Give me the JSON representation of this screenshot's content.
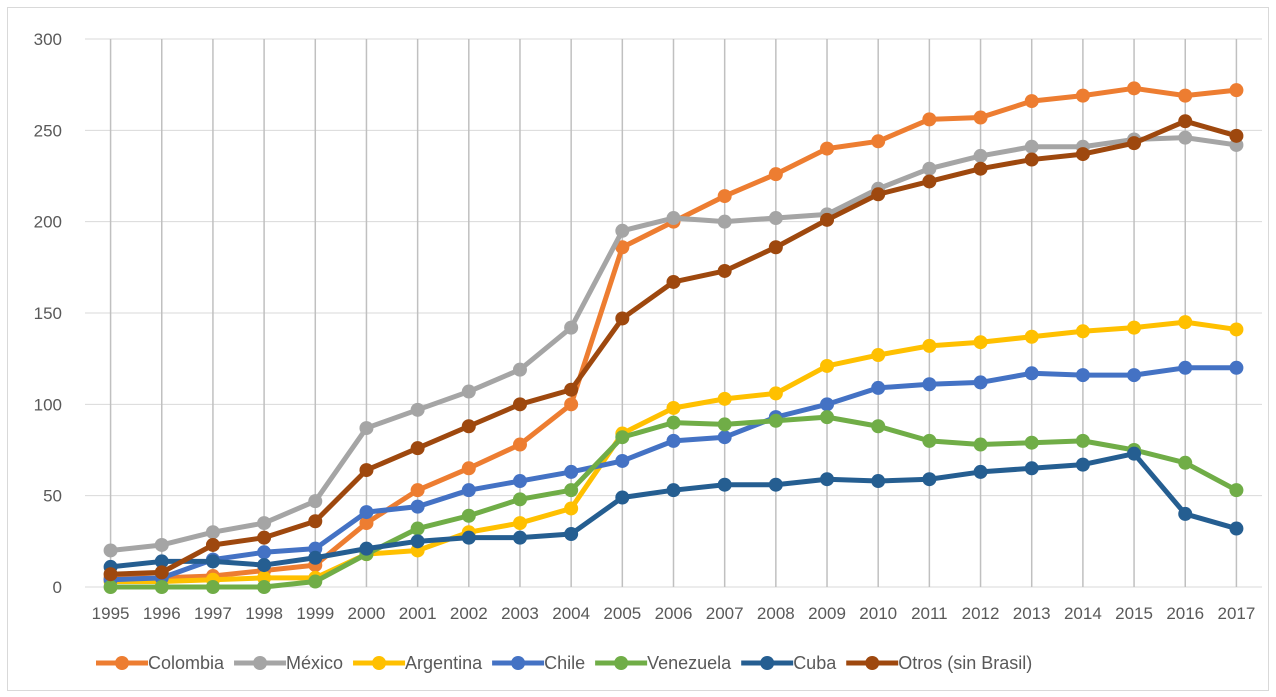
{
  "chart_data": {
    "type": "line",
    "title": "",
    "xlabel": "",
    "ylabel": "",
    "ylim": [
      0,
      300
    ],
    "yticks": [
      0,
      50,
      100,
      150,
      200,
      250,
      300
    ],
    "grid": {
      "horizontal": true,
      "vertical": true
    },
    "legend_position": "bottom",
    "categories": [
      "1995",
      "1996",
      "1997",
      "1998",
      "1999",
      "2000",
      "2001",
      "2002",
      "2003",
      "2004",
      "2005",
      "2006",
      "2007",
      "2008",
      "2009",
      "2010",
      "2011",
      "2012",
      "2013",
      "2014",
      "2015",
      "2016",
      "2017"
    ],
    "series": [
      {
        "name": "Colombia",
        "color": "#ED7D31",
        "values": [
          5,
          5,
          6,
          9,
          12,
          35,
          53,
          65,
          78,
          100,
          186,
          200,
          214,
          226,
          240,
          244,
          256,
          257,
          266,
          269,
          273,
          269,
          272
        ]
      },
      {
        "name": "México",
        "color": "#A5A5A5",
        "values": [
          20,
          23,
          30,
          35,
          47,
          87,
          97,
          107,
          119,
          142,
          195,
          202,
          200,
          202,
          204,
          218,
          229,
          236,
          241,
          241,
          245,
          246,
          242
        ]
      },
      {
        "name": "Argentina",
        "color": "#FFC000",
        "values": [
          3,
          3,
          4,
          5,
          5,
          18,
          20,
          30,
          35,
          43,
          84,
          98,
          103,
          106,
          121,
          127,
          132,
          134,
          137,
          140,
          142,
          145,
          141
        ]
      },
      {
        "name": "Chile",
        "color": "#4472C4",
        "values": [
          4,
          5,
          15,
          19,
          21,
          41,
          44,
          53,
          58,
          63,
          69,
          80,
          82,
          93,
          100,
          109,
          111,
          112,
          117,
          116,
          116,
          120,
          120
        ]
      },
      {
        "name": "Venezuela",
        "color": "#70AD47",
        "values": [
          0,
          0,
          0,
          0,
          3,
          18,
          32,
          39,
          48,
          53,
          82,
          90,
          89,
          91,
          93,
          88,
          80,
          78,
          79,
          80,
          75,
          68,
          53
        ]
      },
      {
        "name": "Cuba",
        "color": "#255E91",
        "values": [
          11,
          14,
          14,
          12,
          16,
          21,
          25,
          27,
          27,
          29,
          49,
          53,
          56,
          56,
          59,
          58,
          59,
          63,
          65,
          67,
          73,
          40,
          32
        ]
      },
      {
        "name": "Otros (sin Brasil)",
        "color": "#9E480E",
        "values": [
          7,
          8,
          23,
          27,
          36,
          64,
          76,
          88,
          100,
          108,
          147,
          167,
          173,
          186,
          201,
          215,
          222,
          229,
          234,
          237,
          243,
          255,
          247
        ]
      }
    ]
  }
}
